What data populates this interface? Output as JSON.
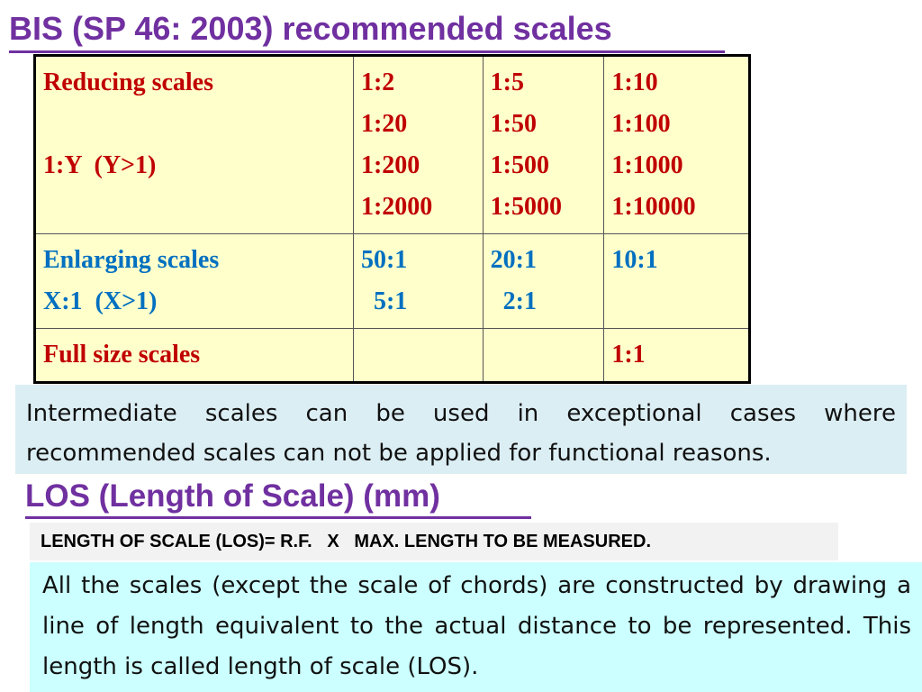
{
  "title": "BIS (SP 46: 2003) recommended scales",
  "table": {
    "reducing": {
      "label": "Reducing scales",
      "formula": "1:Y  (Y>1)",
      "col1": [
        "1:2",
        "1:20",
        "1:200",
        "1:2000"
      ],
      "col2": [
        "1:5",
        "1:50",
        "1:500",
        "1:5000"
      ],
      "col3": [
        "1:10",
        "1:100",
        "1:1000",
        "1:10000"
      ]
    },
    "enlarging": {
      "label": "Enlarging scales",
      "formula": "X:1  (X>1)",
      "col1": [
        "50:1",
        "  5:1"
      ],
      "col2": [
        "20:1",
        "  2:1"
      ],
      "col3": [
        "10:1"
      ]
    },
    "full": {
      "label": "Full size scales",
      "col3": "1:1"
    }
  },
  "note_intermediate": "Intermediate scales can be used in exceptional cases where recommended scales can not be applied for functional reasons.",
  "subtitle": "LOS (Length of Scale) (mm)",
  "formula": "LENGTH OF SCALE (LOS)= R.F.   X   MAX. LENGTH TO BE MEASURED.",
  "note_los": "All the scales (except the scale of chords) are constructed by drawing a line of length equivalent to the actual distance to be represented. This length is called length of scale (LOS).",
  "colors": {
    "heading": "#7030a0",
    "reducing_text": "#c00000",
    "enlarging_text": "#0070c0",
    "table_bg": "#ffffcc",
    "note1_bg": "#dbeef4",
    "note2_bg": "#ccffff"
  }
}
